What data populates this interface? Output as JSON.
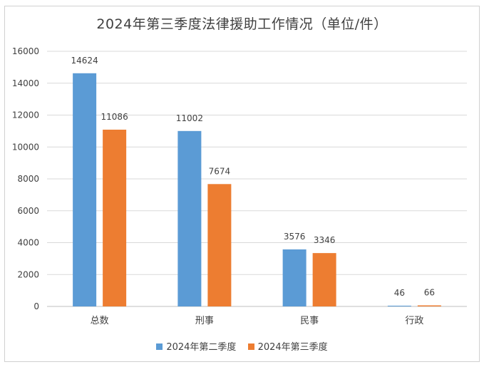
{
  "chart_data": {
    "type": "bar",
    "title": "2024年第三季度法律援助工作情况（单位/件）",
    "categories": [
      "总数",
      "刑事",
      "民事",
      "行政"
    ],
    "series": [
      {
        "name": "2024年第二季度",
        "values": [
          14624,
          11002,
          3576,
          46
        ],
        "color": "#5b9bd5"
      },
      {
        "name": "2024年第三季度",
        "values": [
          11086,
          7674,
          3346,
          66
        ],
        "color": "#ed7d31"
      }
    ],
    "yticks": [
      0,
      2000,
      4000,
      6000,
      8000,
      10000,
      12000,
      14000,
      16000
    ],
    "ylim": [
      0,
      16000
    ],
    "xlabel": "",
    "ylabel": "",
    "grid": true,
    "legend": "bottom"
  }
}
